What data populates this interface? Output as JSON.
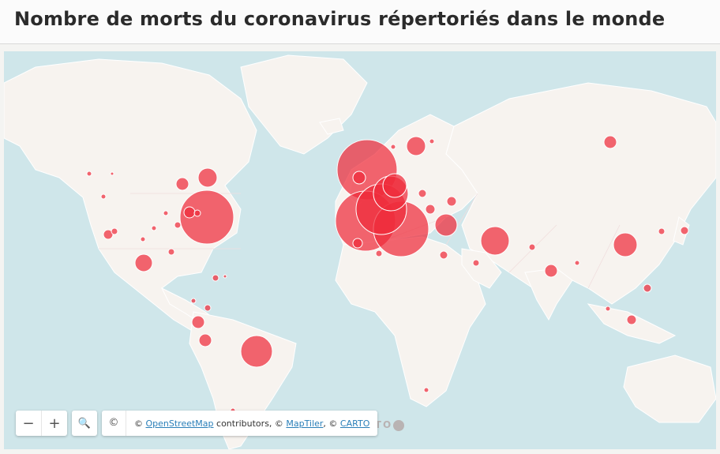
{
  "header": {
    "title": "Nombre de morts du coronavirus répertoriés dans le monde"
  },
  "map": {
    "colors": {
      "water": "#cfe6ea",
      "land": "#f7f3ef",
      "bubble": "#ef2b3a"
    },
    "controls": {
      "zoom_out_icon": "minus-icon",
      "zoom_in_icon": "plus-icon",
      "search_icon": "search-icon",
      "zoom_out_label": "−",
      "zoom_in_label": "+",
      "search_label": "🔍"
    },
    "attribution": {
      "copyright_symbol": "©",
      "prefix": "© ",
      "osm": "OpenStreetMap",
      "middle1": " contributors, © ",
      "maptiler": "MapTiler",
      "middle2": ", © ",
      "carto": "CARTO"
    },
    "watermark": "CARTO"
  }
}
